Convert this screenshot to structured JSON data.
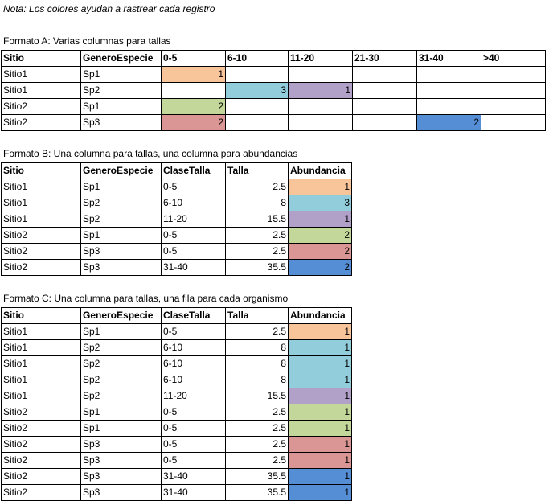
{
  "note": "Nota: Los colores ayudan a rastrear cada registro",
  "colors": {
    "orange": "#f8c49a",
    "blue": "#92cddc",
    "purple": "#b1a0c7",
    "green": "#c4d79b",
    "red": "#da9694",
    "darkblue": "#558ed5"
  },
  "formatA": {
    "caption": "Formato A: Varias columnas para tallas",
    "headers": [
      "Sitio",
      "GeneroEspecie",
      "0-5",
      "6-10",
      "11-20",
      "21-30",
      "31-40",
      ">40"
    ],
    "rows": [
      [
        "Sitio1",
        "Sp1",
        "1",
        "",
        "",
        "",
        "",
        ""
      ],
      [
        "Sitio1",
        "Sp2",
        "",
        "3",
        "1",
        "",
        "",
        ""
      ],
      [
        "Sitio2",
        "Sp1",
        "2",
        "",
        "",
        "",
        "",
        ""
      ],
      [
        "Sitio2",
        "Sp3",
        "2",
        "",
        "",
        "",
        "2",
        ""
      ]
    ],
    "cellColors": [
      [
        "",
        "",
        "orange",
        "",
        "",
        "",
        "",
        ""
      ],
      [
        "",
        "",
        "",
        "blue",
        "purple",
        "",
        "",
        ""
      ],
      [
        "",
        "",
        "green",
        "",
        "",
        "",
        "",
        ""
      ],
      [
        "",
        "",
        "red",
        "",
        "",
        "",
        "darkblue",
        ""
      ]
    ]
  },
  "formatB": {
    "caption": "Formato B: Una columna para tallas, una columna para abundancias",
    "headers": [
      "Sitio",
      "GeneroEspecie",
      "ClaseTalla",
      "Talla",
      "Abundancia"
    ],
    "rows": [
      [
        "Sitio1",
        "Sp1",
        "0-5",
        "2.5",
        "1"
      ],
      [
        "Sitio1",
        "Sp2",
        "6-10",
        "8",
        "3"
      ],
      [
        "Sitio1",
        "Sp2",
        "11-20",
        "15.5",
        "1"
      ],
      [
        "Sitio2",
        "Sp1",
        "0-5",
        "2.5",
        "2"
      ],
      [
        "Sitio2",
        "Sp3",
        "0-5",
        "2.5",
        "2"
      ],
      [
        "Sitio2",
        "Sp3",
        "31-40",
        "35.5",
        "2"
      ]
    ],
    "rowColors": [
      "orange",
      "blue",
      "purple",
      "green",
      "red",
      "darkblue"
    ]
  },
  "formatC": {
    "caption": "Formato C: Una columna para tallas, una fila para cada organismo",
    "headers": [
      "Sitio",
      "GeneroEspecie",
      "ClaseTalla",
      "Talla",
      "Abundancia"
    ],
    "rows": [
      [
        "Sitio1",
        "Sp1",
        "0-5",
        "2.5",
        "1"
      ],
      [
        "Sitio1",
        "Sp2",
        "6-10",
        "8",
        "1"
      ],
      [
        "Sitio1",
        "Sp2",
        "6-10",
        "8",
        "1"
      ],
      [
        "Sitio1",
        "Sp2",
        "6-10",
        "8",
        "1"
      ],
      [
        "Sitio1",
        "Sp2",
        "11-20",
        "15.5",
        "1"
      ],
      [
        "Sitio2",
        "Sp1",
        "0-5",
        "2.5",
        "1"
      ],
      [
        "Sitio2",
        "Sp1",
        "0-5",
        "2.5",
        "1"
      ],
      [
        "Sitio2",
        "Sp3",
        "0-5",
        "2.5",
        "1"
      ],
      [
        "Sitio2",
        "Sp3",
        "0-5",
        "2.5",
        "1"
      ],
      [
        "Sitio2",
        "Sp3",
        "31-40",
        "35.5",
        "1"
      ],
      [
        "Sitio2",
        "Sp3",
        "31-40",
        "35.5",
        "1"
      ]
    ],
    "rowColors": [
      "orange",
      "blue",
      "blue",
      "blue",
      "purple",
      "green",
      "green",
      "red",
      "red",
      "darkblue",
      "darkblue"
    ]
  }
}
